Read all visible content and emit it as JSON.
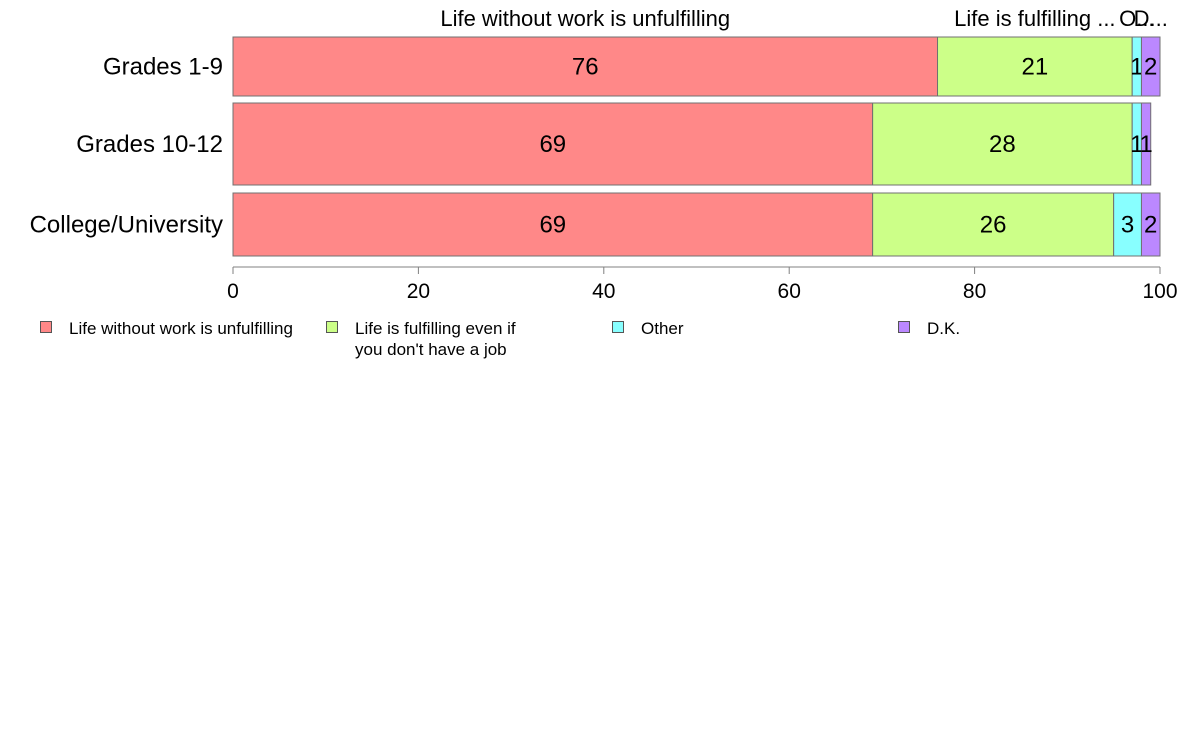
{
  "chart_data": {
    "type": "bar",
    "orientation": "horizontal",
    "stacked": true,
    "categories": [
      "Grades 1-9",
      "Grades 10-12",
      "College/University"
    ],
    "series": [
      {
        "name": "Life without work is unfulfilling",
        "values": [
          76,
          69,
          69
        ],
        "color": "#ff8888"
      },
      {
        "name": "Life is fulfilling even if you don't have a job",
        "values": [
          21,
          28,
          26
        ],
        "color": "#ccff88"
      },
      {
        "name": "Other",
        "values": [
          1,
          1,
          3
        ],
        "color": "#88ffff"
      },
      {
        "name": "D.K.",
        "values": [
          2,
          1,
          2
        ],
        "color": "#bb88ff"
      }
    ],
    "top_labels": [
      "Life without work is unfulfilling",
      "Life is fulfilling ...",
      "O...",
      "D..."
    ],
    "xlim": [
      0,
      100
    ],
    "xticks": [
      0,
      20,
      40,
      60,
      80,
      100
    ],
    "grid": false,
    "legend_position": "bottom"
  },
  "legend": {
    "items": [
      "Life without work is unfulfilling",
      "Life is fulfilling even if\nyou don't have a job",
      "Other",
      "D.K."
    ]
  }
}
